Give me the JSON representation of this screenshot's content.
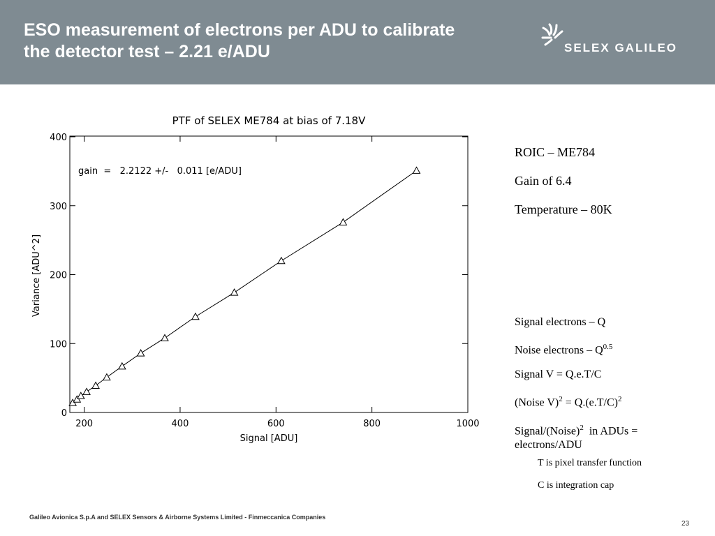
{
  "header": {
    "title_lines": [
      "ESO measurement of electrons per ADU to calibrate",
      "the detector test – 2.21 e/ADU"
    ],
    "logo": "SELEX GALILEO"
  },
  "chart_data": {
    "type": "scatter",
    "title": "PTF of SELEX ME784 at bias of 7.18V",
    "x_label": "Signal [ADU]",
    "y_label": "Variance [ADU^2]",
    "annotation": "gain  =   2.2122 +/-   0.011 [e/ADU]",
    "x": [
      176,
      185,
      193,
      205,
      224,
      247,
      279,
      318,
      368,
      432,
      513,
      611,
      740,
      893
    ],
    "values": [
      14,
      19,
      24,
      30,
      39,
      51,
      67,
      86,
      108,
      139,
      174,
      220,
      276,
      351
    ],
    "color": "#000000",
    "marker": "triangle",
    "line": true,
    "xlim": [
      170,
      1000
    ],
    "ylim": [
      0,
      400
    ],
    "xticks": [
      200,
      400,
      600,
      800,
      1000
    ],
    "yticks": [
      0,
      100,
      200,
      300,
      400
    ]
  },
  "info": {
    "lines": [
      "ROIC – ME784",
      "Gain of 6.4",
      "Temperature – 80K"
    ]
  },
  "formulas": [
    {
      "parts": [
        "Signal electrons – Q"
      ]
    },
    {
      "parts": [
        "Noise electrons – Q",
        "0.5"
      ]
    },
    {
      "parts": [
        "Signal V = Q.e.T/C"
      ]
    },
    {
      "parts": [
        "(Noise V)",
        "2",
        " = Q.(e.T/C)",
        "2"
      ]
    },
    {
      "parts": [
        "Signal/(Noise)",
        "2",
        "  in ADUs = electrons/ADU"
      ]
    }
  ],
  "notes": [
    "T is pixel transfer function",
    "C is integration cap"
  ],
  "footer": {
    "text": "Galileo Avionica S.p.A and SELEX Sensors & Airborne Systems Limited - Finmeccanica Companies",
    "page": 23
  }
}
